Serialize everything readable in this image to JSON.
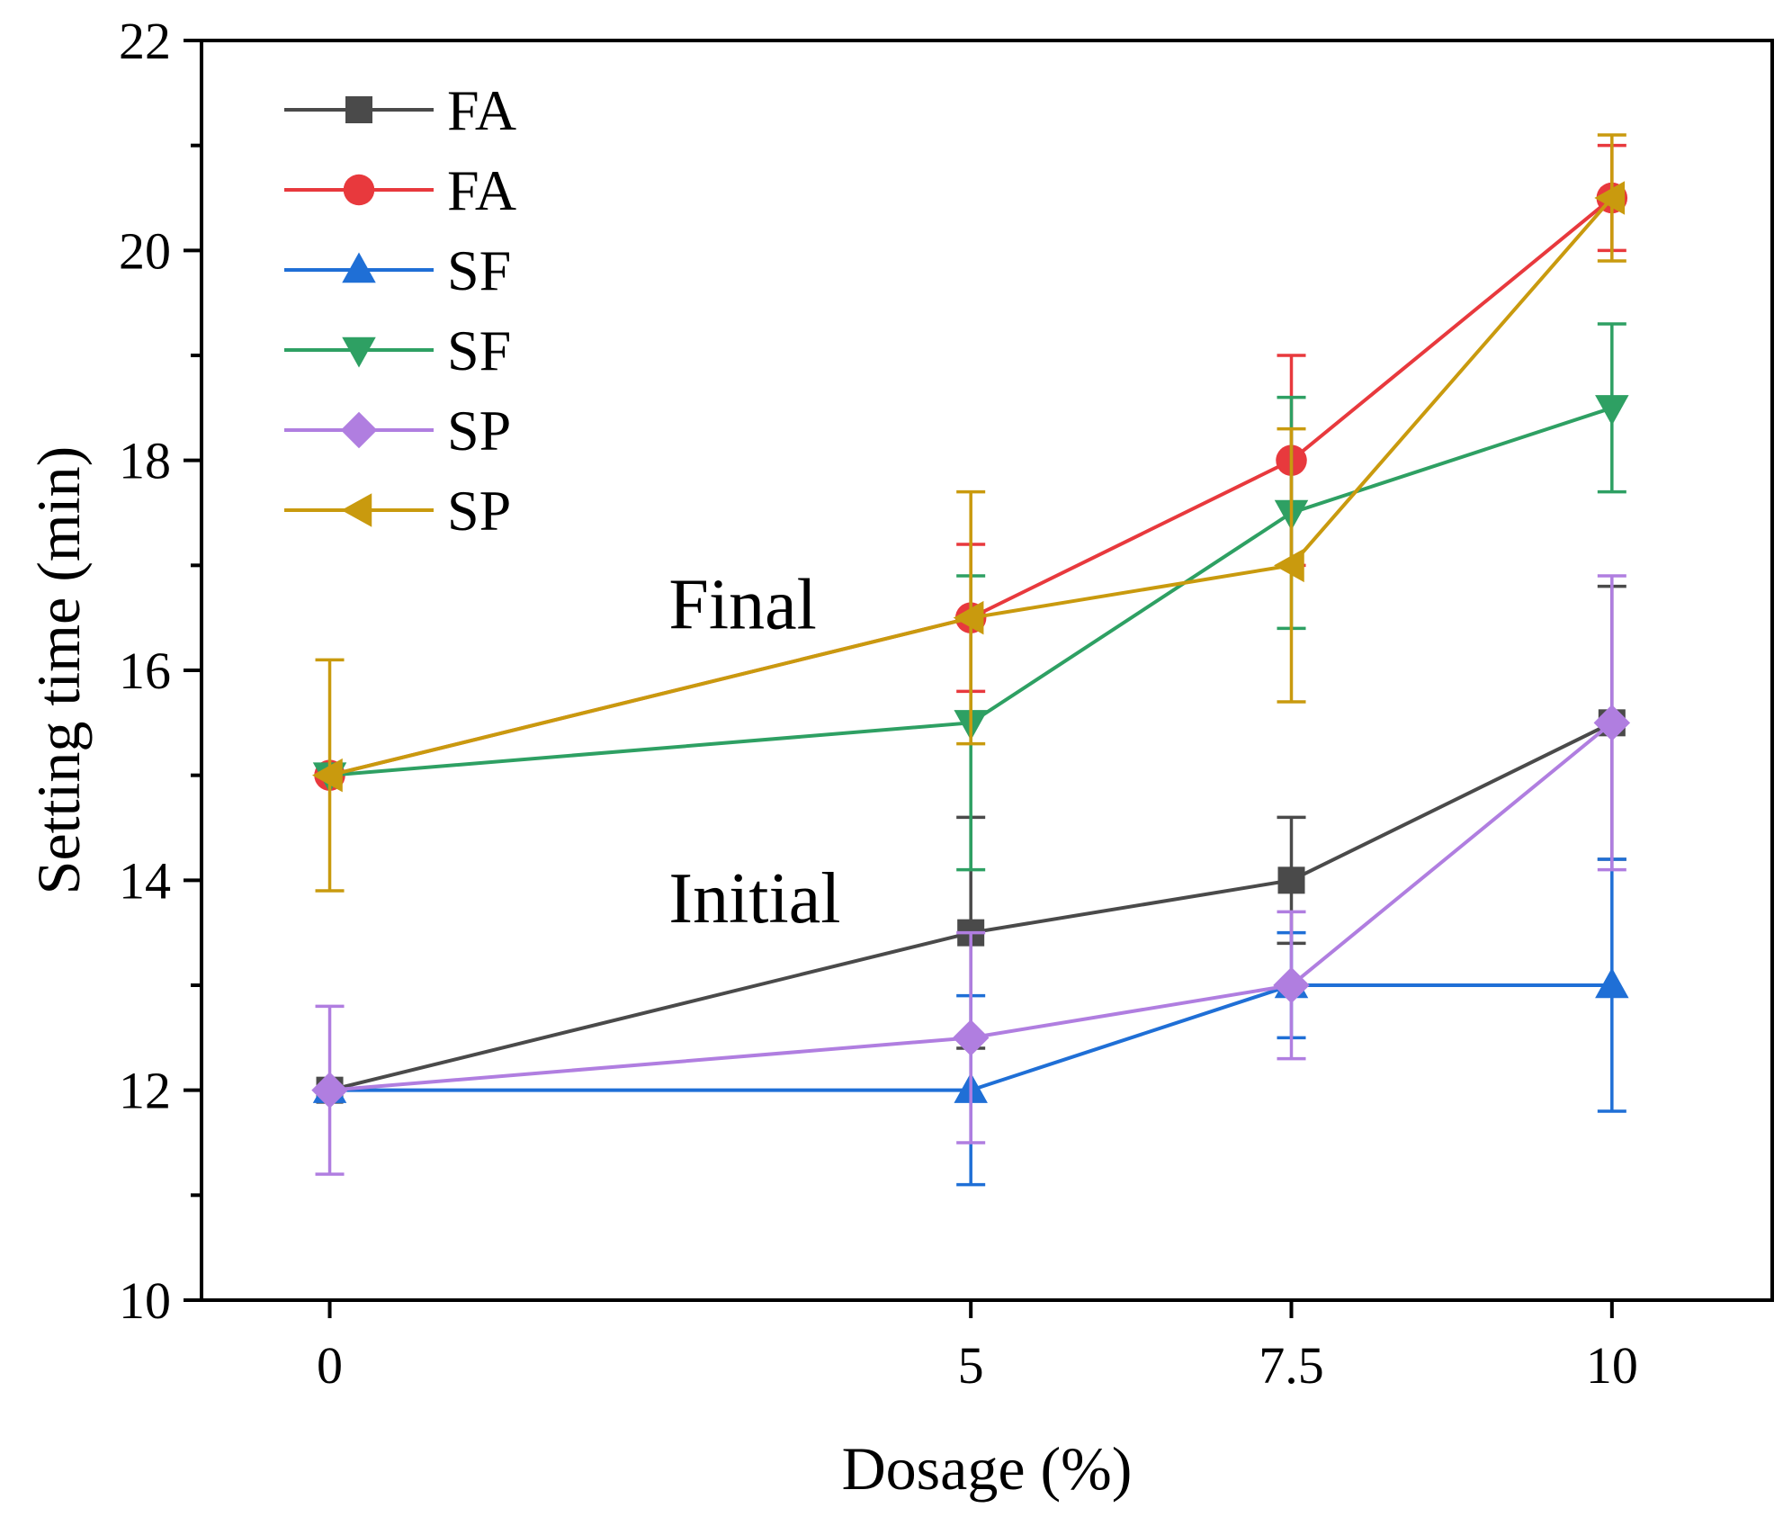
{
  "chart_data": {
    "type": "line",
    "title": "",
    "xlabel": "Dosage (%)",
    "ylabel": "Setting time (min)",
    "x": [
      0,
      5,
      7.5,
      10
    ],
    "x_tick_labels": [
      "0",
      "5",
      "7.5",
      "10"
    ],
    "xlim": [
      -1,
      11.25
    ],
    "ylim": [
      10,
      22
    ],
    "y_ticks": [
      10,
      12,
      14,
      16,
      18,
      20,
      22
    ],
    "y_tick_labels": [
      "10",
      "12",
      "14",
      "16",
      "18",
      "20",
      "22"
    ],
    "grid": false,
    "legend_position": "top-left",
    "series": [
      {
        "name": "FA",
        "group": "Initial",
        "marker": "square",
        "color": "#4a4a4a",
        "values": [
          12,
          13.5,
          14,
          15.5
        ],
        "errors": [
          0,
          1.1,
          0.6,
          1.3
        ]
      },
      {
        "name": "FA",
        "group": "Final",
        "marker": "circle",
        "color": "#e8393d",
        "values": [
          15,
          16.5,
          18,
          20.5
        ],
        "errors": [
          0,
          0.7,
          1.0,
          0.5
        ]
      },
      {
        "name": "SF",
        "group": "Initial",
        "marker": "triangle-up",
        "color": "#1f6fd6",
        "values": [
          12,
          12,
          13,
          13
        ],
        "errors": [
          0,
          0.9,
          0.5,
          1.2
        ]
      },
      {
        "name": "SF",
        "group": "Final",
        "marker": "triangle-down",
        "color": "#2ea063",
        "values": [
          15,
          15.5,
          17.5,
          18.5
        ],
        "errors": [
          0,
          1.4,
          1.1,
          0.8
        ]
      },
      {
        "name": "SP",
        "group": "Initial",
        "marker": "diamond",
        "color": "#b07ee0",
        "values": [
          12,
          12.5,
          13,
          15.5
        ],
        "errors": [
          0.8,
          1.0,
          0.7,
          1.4
        ]
      },
      {
        "name": "SP",
        "group": "Final",
        "marker": "triangle-left",
        "color": "#c99a0e",
        "values": [
          15,
          16.5,
          17,
          20.5
        ],
        "errors": [
          1.1,
          1.2,
          1.3,
          0.6
        ]
      }
    ],
    "annotations": [
      {
        "text": "Final",
        "x": 5.1,
        "y": 16.4
      },
      {
        "text": "Initial",
        "x": 5.1,
        "y": 13.6
      }
    ]
  }
}
